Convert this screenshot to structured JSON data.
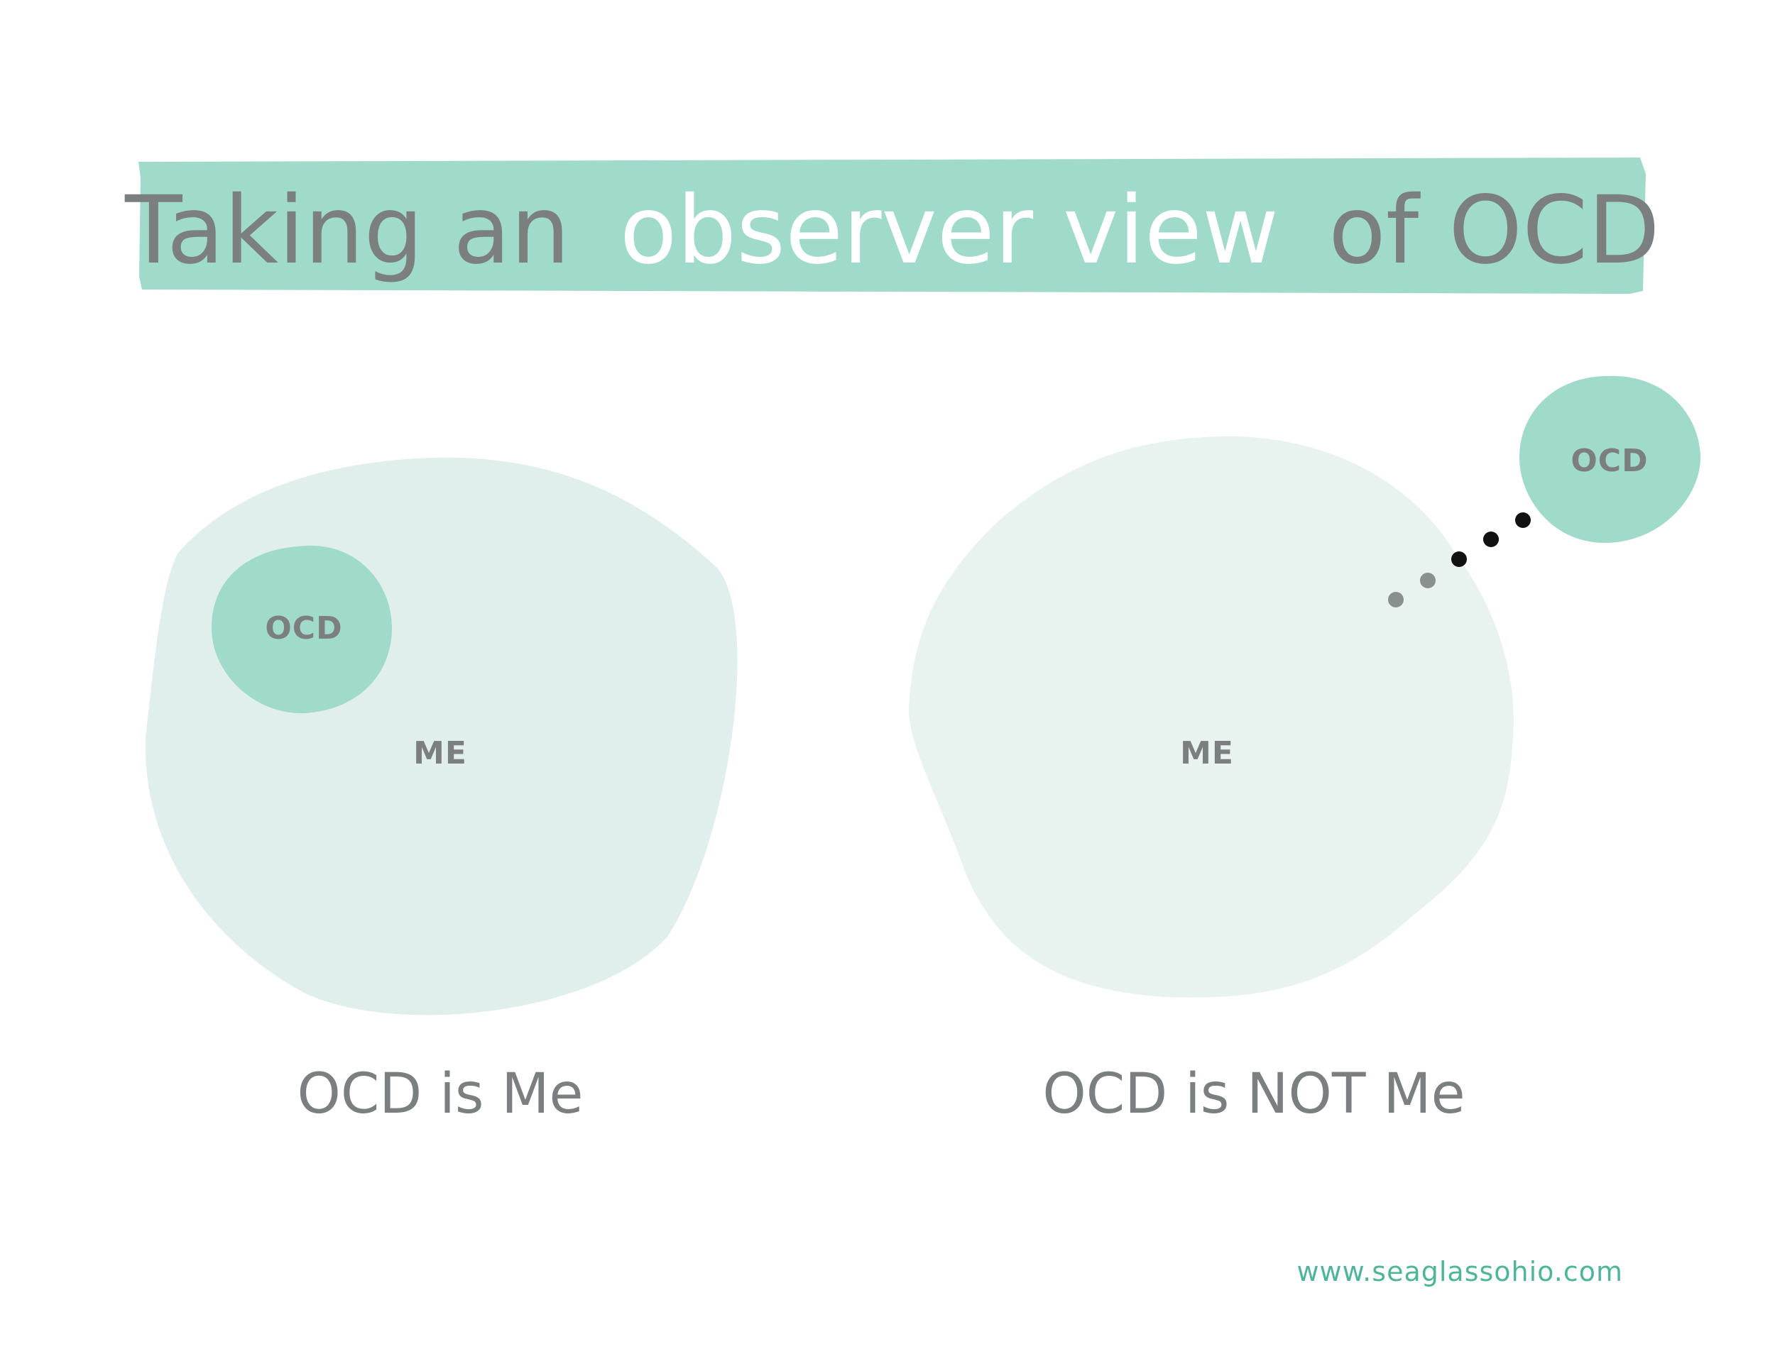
{
  "title": {
    "part1": "Taking an",
    "part2": "observer view",
    "part3": "of OCD"
  },
  "left_diagram": {
    "outer_label": "ME",
    "inner_label": "OCD",
    "caption": "OCD is Me"
  },
  "right_diagram": {
    "outer_label": "ME",
    "detached_label": "OCD",
    "caption": "OCD is NOT Me"
  },
  "footer": {
    "url": "www.seaglassohio.com"
  },
  "colors": {
    "banner": "#9fdaca",
    "title_gray": "#7c7f80",
    "title_white": "#ffffff",
    "blob_left": "#e0efeb",
    "blob_right": "#e8f3f0",
    "ocd_blob": "#9fdaca",
    "label_gray": "#7c7f80",
    "dot_gray": "#8a908e",
    "dot_black": "#111111",
    "footer_green": "#4fb59a"
  }
}
